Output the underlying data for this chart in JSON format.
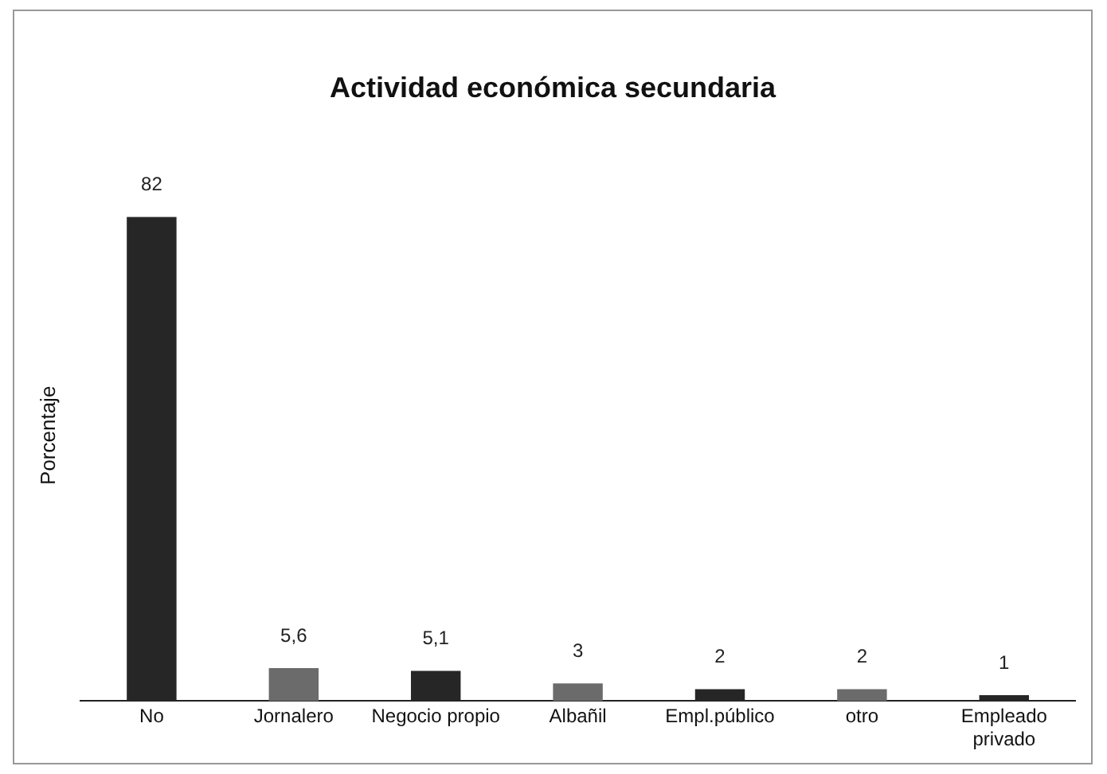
{
  "chart_data": {
    "type": "bar",
    "title": "Actividad económica secundaria",
    "ylabel": "Porcentaje",
    "categories": [
      "No",
      "Jornalero",
      "Negocio propio",
      "Albañil",
      "Empl.público",
      "otro",
      "Empleado privado"
    ],
    "values": [
      82,
      5.6,
      5.1,
      3,
      2,
      2,
      1
    ],
    "colors": [
      "#262626",
      "#6b6b6b",
      "#262626",
      "#6b6b6b",
      "#262626",
      "#6b6b6b",
      "#262626"
    ],
    "value_labels": [
      "82",
      "5,6",
      "5,1",
      "3",
      "2",
      "2",
      "1"
    ],
    "grid": false,
    "legend": false
  }
}
